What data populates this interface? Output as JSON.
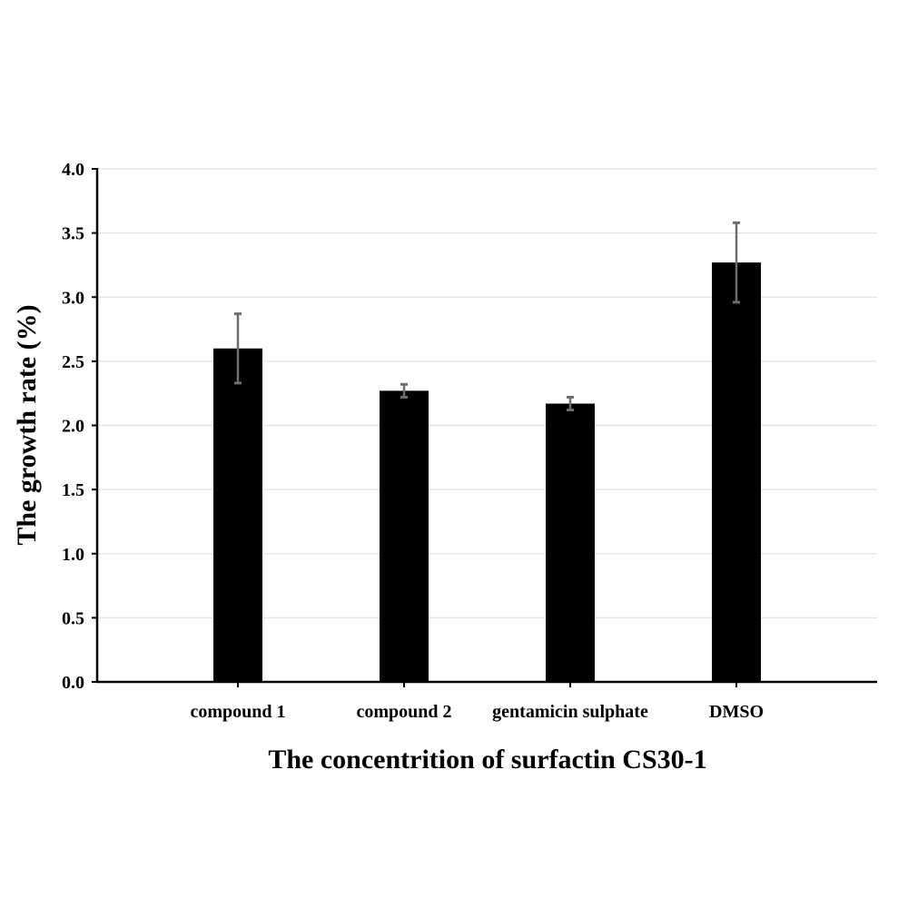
{
  "chart_data": {
    "type": "bar",
    "categories": [
      "compound 1",
      "compound 2",
      "gentamicin sulphate",
      "DMSO"
    ],
    "values": [
      2.6,
      2.27,
      2.17,
      3.27
    ],
    "errors": [
      0.27,
      0.05,
      0.05,
      0.31
    ],
    "xlabel": "The concentrition of surfactin CS30-1",
    "ylabel": "The growth rate (%)",
    "ylim": [
      0,
      4
    ],
    "yticks": [
      "0.0",
      "0.5",
      "1.0",
      "1.5",
      "2.0",
      "2.5",
      "3.0",
      "3.5",
      "4.0"
    ],
    "grid": true,
    "colors": {
      "bar": "#000000",
      "error_bar": "#6e6e6e",
      "grid": "#e3e3e3",
      "axis": "#000000"
    }
  }
}
